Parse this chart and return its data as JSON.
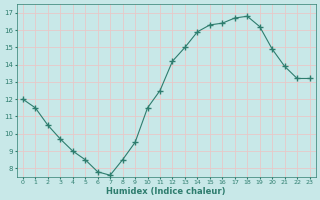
{
  "x": [
    0,
    1,
    2,
    3,
    4,
    5,
    6,
    7,
    8,
    9,
    10,
    11,
    12,
    13,
    14,
    15,
    16,
    17,
    18,
    19,
    20,
    21,
    22,
    23
  ],
  "y": [
    12,
    11.5,
    10.5,
    9.7,
    9.0,
    8.5,
    7.8,
    7.6,
    8.5,
    9.5,
    11.5,
    12.5,
    14.2,
    15.0,
    15.9,
    16.3,
    16.4,
    16.7,
    16.8,
    16.2,
    14.9,
    13.9,
    13.2,
    13.2
  ],
  "xlabel": "Humidex (Indice chaleur)",
  "ylim": [
    7.5,
    17.5
  ],
  "xlim": [
    -0.5,
    23.5
  ],
  "yticks": [
    8,
    9,
    10,
    11,
    12,
    13,
    14,
    15,
    16,
    17
  ],
  "xticks": [
    0,
    1,
    2,
    3,
    4,
    5,
    6,
    7,
    8,
    9,
    10,
    11,
    12,
    13,
    14,
    15,
    16,
    17,
    18,
    19,
    20,
    21,
    22,
    23
  ],
  "line_color": "#2e7d6e",
  "marker": "o",
  "marker_size": 2.5,
  "fig_bg_color": "#c8e8e8",
  "plot_bg_color": "#c8e8e8",
  "grid_color": "#e8c8c8",
  "label_color": "#2e7d6e",
  "tick_color": "#2e7d6e"
}
